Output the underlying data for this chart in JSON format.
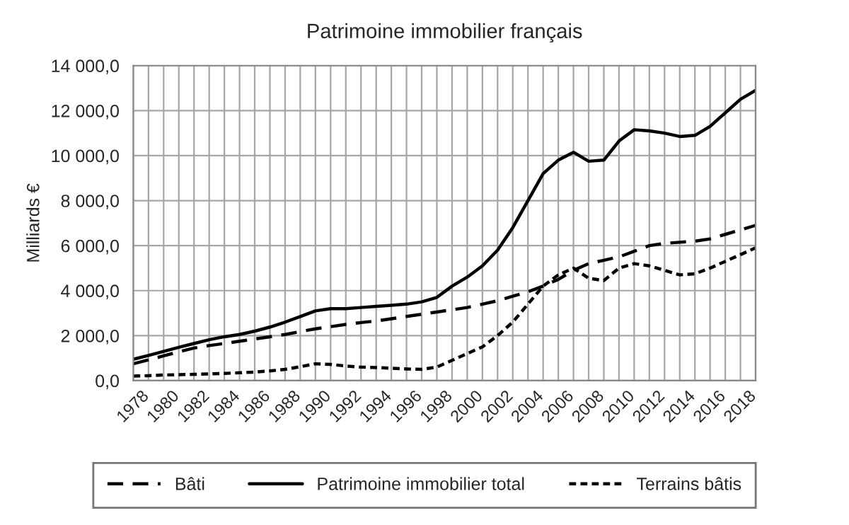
{
  "chart_data": {
    "type": "line",
    "title": "Patrimoine immobilier français",
    "ylabel": "Milliards €",
    "categories": [
      "1978",
      null,
      "1980",
      null,
      "1982",
      null,
      "1984",
      null,
      "1986",
      null,
      "1988",
      null,
      "1990",
      null,
      "1992",
      null,
      "1994",
      null,
      "1996",
      null,
      "1998",
      null,
      "2000",
      null,
      "2002",
      null,
      "2004",
      null,
      "2006",
      null,
      "2008",
      null,
      "2010",
      null,
      "2012",
      null,
      "2014",
      null,
      "2016",
      null,
      "2018",
      null
    ],
    "series": [
      {
        "name": "Bâti",
        "color": "#000000",
        "line_style": "dashed",
        "values": [
          750,
          920,
          1100,
          1280,
          1450,
          1560,
          1650,
          1750,
          1850,
          1950,
          2050,
          2180,
          2300,
          2400,
          2500,
          2580,
          2650,
          2750,
          2850,
          2950,
          3050,
          3150,
          3250,
          3400,
          3550,
          3750,
          3950,
          4200,
          4500,
          4900,
          5200,
          5350,
          5500,
          5750,
          6000,
          6100,
          6150,
          6200,
          6300,
          6500,
          6700,
          6900
        ]
      },
      {
        "name": "Patrimoine immobilier total",
        "color": "#000000",
        "line_style": "solid",
        "values": [
          950,
          1120,
          1300,
          1480,
          1650,
          1820,
          1950,
          2050,
          2200,
          2380,
          2600,
          2850,
          3100,
          3200,
          3200,
          3250,
          3300,
          3350,
          3400,
          3500,
          3700,
          4200,
          4600,
          5100,
          5800,
          6800,
          8000,
          9200,
          9800,
          10150,
          9750,
          9800,
          10650,
          11150,
          11100,
          11000,
          10850,
          10900,
          11300,
          11900,
          12500,
          12900
        ]
      },
      {
        "name": "Terrains bâtis",
        "color": "#000000",
        "line_style": "dotted",
        "values": [
          200,
          220,
          250,
          265,
          280,
          300,
          320,
          350,
          380,
          430,
          500,
          620,
          750,
          720,
          650,
          600,
          580,
          550,
          520,
          500,
          600,
          900,
          1200,
          1500,
          2000,
          2600,
          3400,
          4200,
          4700,
          5000,
          4550,
          4450,
          5000,
          5200,
          5100,
          4900,
          4700,
          4750,
          5000,
          5300,
          5600,
          5900
        ]
      }
    ],
    "ylim": [
      0,
      14000
    ],
    "yticks": [
      {
        "value": 0,
        "label": "0,0"
      },
      {
        "value": 2000,
        "label": "2 000,0"
      },
      {
        "value": 4000,
        "label": "4 000,0"
      },
      {
        "value": 6000,
        "label": "6 000,0"
      },
      {
        "value": 8000,
        "label": "8 000,0"
      },
      {
        "value": 10000,
        "label": "10 000,0"
      },
      {
        "value": 12000,
        "label": "12 000,0"
      },
      {
        "value": 14000,
        "label": "14 000,0"
      }
    ],
    "grid": true,
    "legend": "bottom",
    "marker": "none"
  }
}
